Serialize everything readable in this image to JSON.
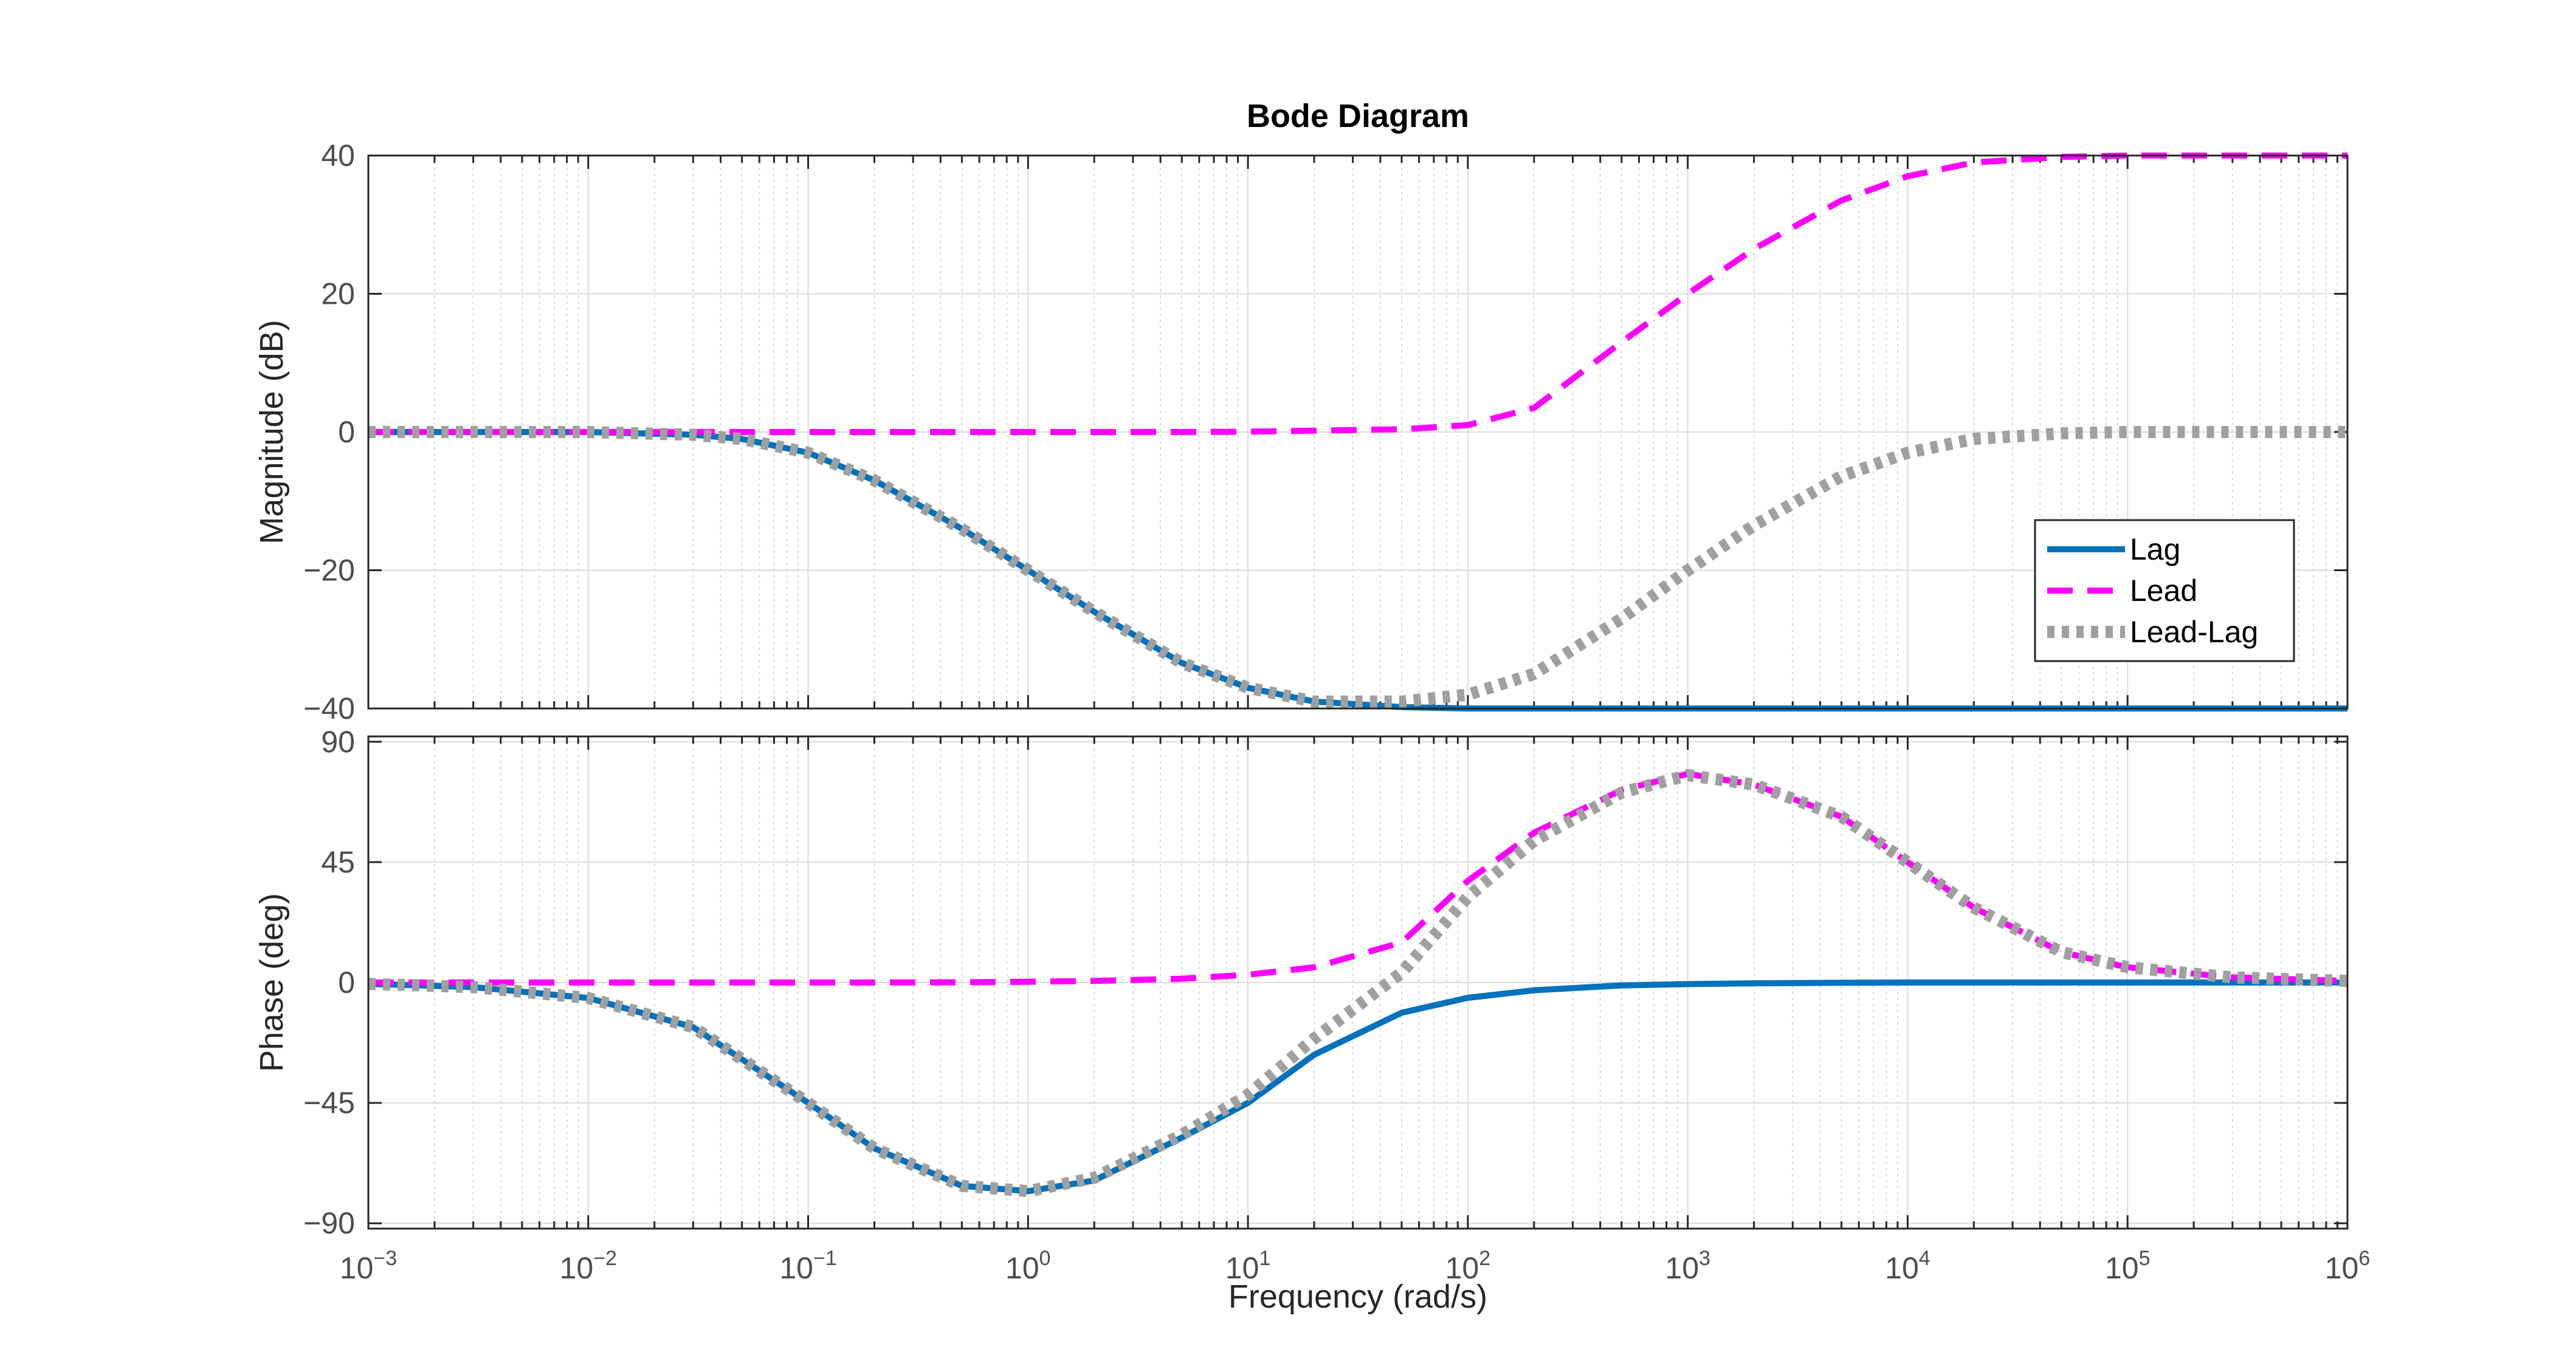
{
  "title": "Bode Diagram",
  "xlabel": "Frequency  (rad/s)",
  "chart_data": [
    {
      "type": "line",
      "panel": "magnitude",
      "ylabel": "Magnitude (dB)",
      "xscale": "log",
      "xlim": [
        0.001,
        1000000
      ],
      "ylim": [
        -40,
        40
      ],
      "yticks": [
        40,
        20,
        0,
        -20,
        -40
      ],
      "xticks": [
        {
          "base": "10",
          "exp": "-3"
        },
        {
          "base": "10",
          "exp": "-2"
        },
        {
          "base": "10",
          "exp": "-1"
        },
        {
          "base": "10",
          "exp": "0"
        },
        {
          "base": "10",
          "exp": "1"
        },
        {
          "base": "10",
          "exp": "2"
        },
        {
          "base": "10",
          "exp": "3"
        },
        {
          "base": "10",
          "exp": "4"
        },
        {
          "base": "10",
          "exp": "5"
        },
        {
          "base": "10",
          "exp": "6"
        }
      ],
      "grid": true,
      "legend_position": "right",
      "x": [
        0.001,
        0.01,
        0.03,
        0.05,
        0.1,
        0.2,
        0.5,
        1,
        2,
        5,
        10,
        20,
        50,
        100,
        200,
        500,
        1000,
        2000,
        5000,
        10000,
        20000,
        50000,
        100000,
        1000000
      ],
      "series": [
        {
          "name": "Lag",
          "color": "#0072BD",
          "style": "solid",
          "values": [
            0,
            0,
            -0.4,
            -1,
            -3,
            -7,
            -14,
            -20,
            -26,
            -33.4,
            -37,
            -39,
            -39.8,
            -40,
            -40,
            -40,
            -40,
            -40,
            -40,
            -40,
            -40,
            -40,
            -40,
            -40
          ]
        },
        {
          "name": "Lead",
          "color": "#FF00FF",
          "style": "dashed",
          "values": [
            0,
            0,
            0,
            0,
            0,
            0,
            0,
            0,
            0,
            0.01,
            0.04,
            0.2,
            0.4,
            1,
            3.5,
            13,
            20,
            26.5,
            33.5,
            37,
            39,
            39.8,
            40,
            40
          ]
        },
        {
          "name": "Lead-Lag",
          "color": "#A0A0A0",
          "style": "dotted",
          "values": [
            0,
            0,
            -0.4,
            -1,
            -3,
            -7,
            -14,
            -20,
            -26,
            -33.4,
            -37,
            -39,
            -39,
            -38,
            -35,
            -27,
            -20,
            -13.5,
            -6.4,
            -3,
            -1,
            -0.2,
            0,
            0
          ]
        }
      ]
    },
    {
      "type": "line",
      "panel": "phase",
      "ylabel": "Phase (deg)",
      "xscale": "log",
      "xlim": [
        0.001,
        1000000
      ],
      "ylim": [
        -92,
        92
      ],
      "yticks": [
        90,
        45,
        0,
        -45,
        -90
      ],
      "grid": true,
      "x": [
        0.001,
        0.003,
        0.01,
        0.03,
        0.1,
        0.2,
        0.5,
        1,
        2,
        5,
        10,
        20,
        50,
        100,
        200,
        500,
        1000,
        2000,
        5000,
        10000,
        20000,
        50000,
        100000,
        300000,
        1000000
      ],
      "series": [
        {
          "name": "Lag",
          "color": "#0072BD",
          "style": "solid",
          "values": [
            -0.5,
            -1.7,
            -5.8,
            -16.7,
            -45,
            -62,
            -76,
            -78,
            -74,
            -58,
            -45,
            -27,
            -11.3,
            -5.7,
            -2.9,
            -1.1,
            -0.6,
            -0.3,
            -0.1,
            0,
            0,
            0,
            0,
            0,
            0
          ]
        },
        {
          "name": "Lead",
          "color": "#FF00FF",
          "style": "dashed",
          "values": [
            0,
            0,
            0,
            0,
            0,
            0,
            0.1,
            0.3,
            0.6,
            1.4,
            2.9,
            5.7,
            15,
            38,
            56,
            72,
            78,
            74,
            62,
            45,
            28,
            11.4,
            5.7,
            1.9,
            0.6
          ]
        },
        {
          "name": "Lead-Lag",
          "color": "#A0A0A0",
          "style": "dotted",
          "values": [
            -0.5,
            -1.7,
            -5.8,
            -16.7,
            -45,
            -62,
            -76,
            -78,
            -73,
            -57,
            -42,
            -21,
            3.7,
            32,
            53,
            71,
            77.5,
            74,
            62,
            45,
            28,
            11.4,
            5.7,
            1.9,
            0.6
          ]
        }
      ]
    }
  ]
}
